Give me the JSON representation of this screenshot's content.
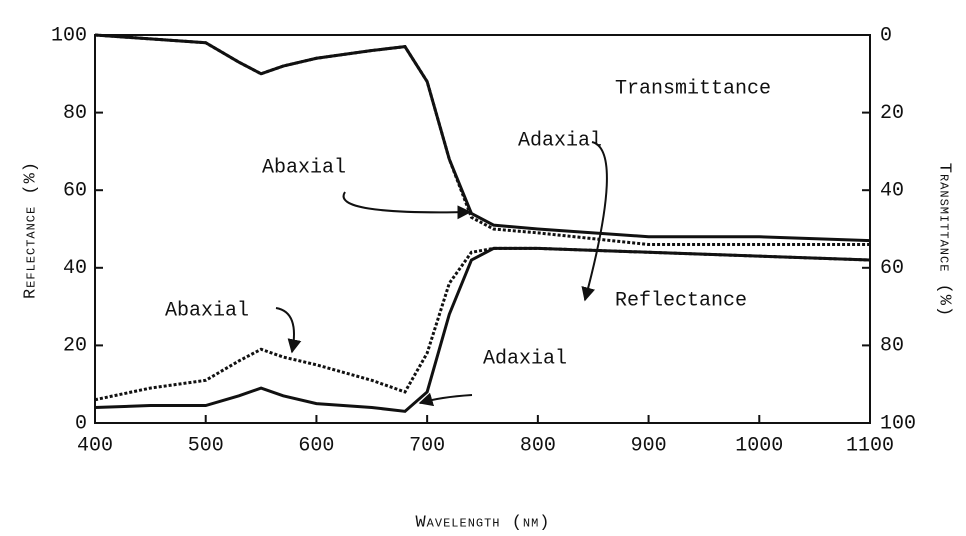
{
  "chart_data": {
    "type": "line",
    "xlabel": "Wavelength (nm)",
    "ylabel": "Reflectance (%)",
    "y2label": "Transmittance (%)",
    "annotations": [
      "Transmittance",
      "Reflectance"
    ],
    "x": [
      400,
      450,
      500,
      530,
      550,
      570,
      600,
      650,
      680,
      700,
      720,
      740,
      760,
      800,
      900,
      1000,
      1100
    ],
    "xlim": [
      400,
      1100
    ],
    "xticks": [
      400,
      500,
      600,
      700,
      800,
      900,
      1000,
      1100
    ],
    "ylim": [
      0,
      100
    ],
    "yticks": [
      0,
      20,
      40,
      60,
      80,
      100
    ],
    "y2lim": [
      100,
      0
    ],
    "y2ticks": [
      0,
      20,
      40,
      60,
      80,
      100
    ],
    "series": [
      {
        "name": "Abaxial",
        "color": "#111111",
        "style": "dashed",
        "axis": "y2",
        "values": [
          0,
          1,
          2,
          7,
          10,
          8,
          6,
          4,
          3,
          12,
          32,
          47,
          50,
          51,
          54,
          54,
          54
        ]
      },
      {
        "name": "Adaxial",
        "color": "#111111",
        "style": "solid",
        "axis": "y2",
        "values": [
          0,
          1,
          2,
          7,
          10,
          8,
          6,
          4,
          3,
          12,
          32,
          46,
          49,
          50,
          52,
          52,
          53
        ]
      },
      {
        "name": "Abaxial",
        "color": "#111111",
        "style": "dashed",
        "axis": "y",
        "values": [
          6,
          9,
          11,
          16,
          19,
          17,
          15,
          11,
          8,
          18,
          36,
          44,
          45,
          45,
          44,
          43,
          42
        ]
      },
      {
        "name": "Adaxial",
        "color": "#111111",
        "style": "solid",
        "axis": "y",
        "values": [
          4,
          4.5,
          4.5,
          7,
          9,
          7,
          5,
          4,
          3,
          8,
          28,
          42,
          45,
          45,
          44,
          43,
          42
        ]
      }
    ]
  }
}
